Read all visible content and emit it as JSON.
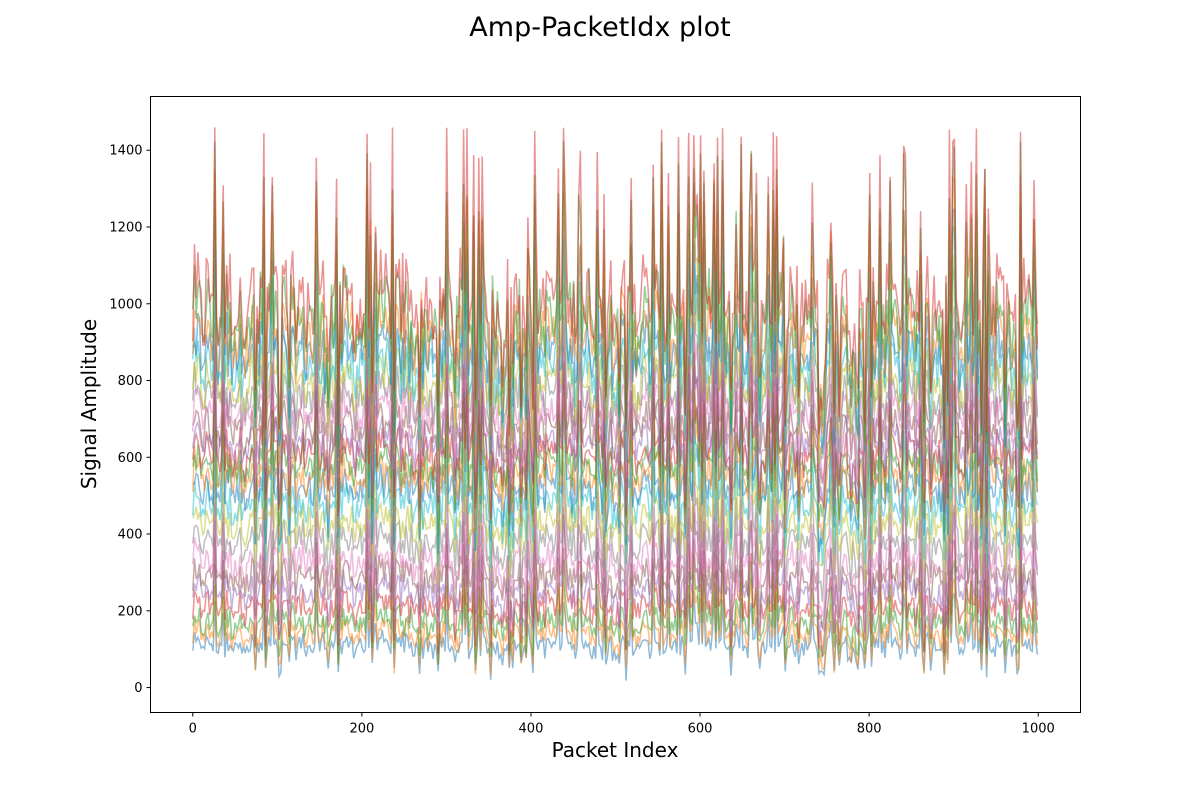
{
  "chart_data": {
    "type": "line",
    "title": "Amp-PacketIdx plot",
    "xlabel": "Packet Index",
    "ylabel": "Signal Amplitude",
    "xlim": [
      -50,
      1050
    ],
    "ylim": [
      -65,
      1540
    ],
    "xticks": [
      0,
      200,
      400,
      600,
      800,
      1000
    ],
    "yticks": [
      0,
      200,
      400,
      600,
      800,
      1000,
      1200,
      1400
    ],
    "x_range": [
      0,
      999
    ],
    "num_series": 24,
    "grid": false,
    "legend": "none",
    "colors": [
      "#1f77b4",
      "#ff7f0e",
      "#2ca02c",
      "#d62728",
      "#9467bd",
      "#8c564b",
      "#e377c2",
      "#7f7f7f",
      "#bcbd22",
      "#17becf"
    ],
    "series_profiles": [
      {
        "baseline": 110,
        "spread": 60
      },
      {
        "baseline": 140,
        "spread": 70
      },
      {
        "baseline": 170,
        "spread": 75
      },
      {
        "baseline": 210,
        "spread": 80
      },
      {
        "baseline": 250,
        "spread": 85
      },
      {
        "baseline": 290,
        "spread": 90
      },
      {
        "baseline": 330,
        "spread": 95
      },
      {
        "baseline": 380,
        "spread": 100
      },
      {
        "baseline": 430,
        "spread": 100
      },
      {
        "baseline": 480,
        "spread": 105
      },
      {
        "baseline": 520,
        "spread": 110
      },
      {
        "baseline": 555,
        "spread": 110
      },
      {
        "baseline": 580,
        "spread": 110
      },
      {
        "baseline": 610,
        "spread": 115
      },
      {
        "baseline": 640,
        "spread": 120
      },
      {
        "baseline": 680,
        "spread": 125
      },
      {
        "baseline": 720,
        "spread": 130
      },
      {
        "baseline": 760,
        "spread": 140
      },
      {
        "baseline": 800,
        "spread": 150
      },
      {
        "baseline": 840,
        "spread": 160
      },
      {
        "baseline": 880,
        "spread": 175
      },
      {
        "baseline": 920,
        "spread": 190
      },
      {
        "baseline": 960,
        "spread": 210
      },
      {
        "baseline": 1000,
        "spread": 230
      }
    ]
  }
}
